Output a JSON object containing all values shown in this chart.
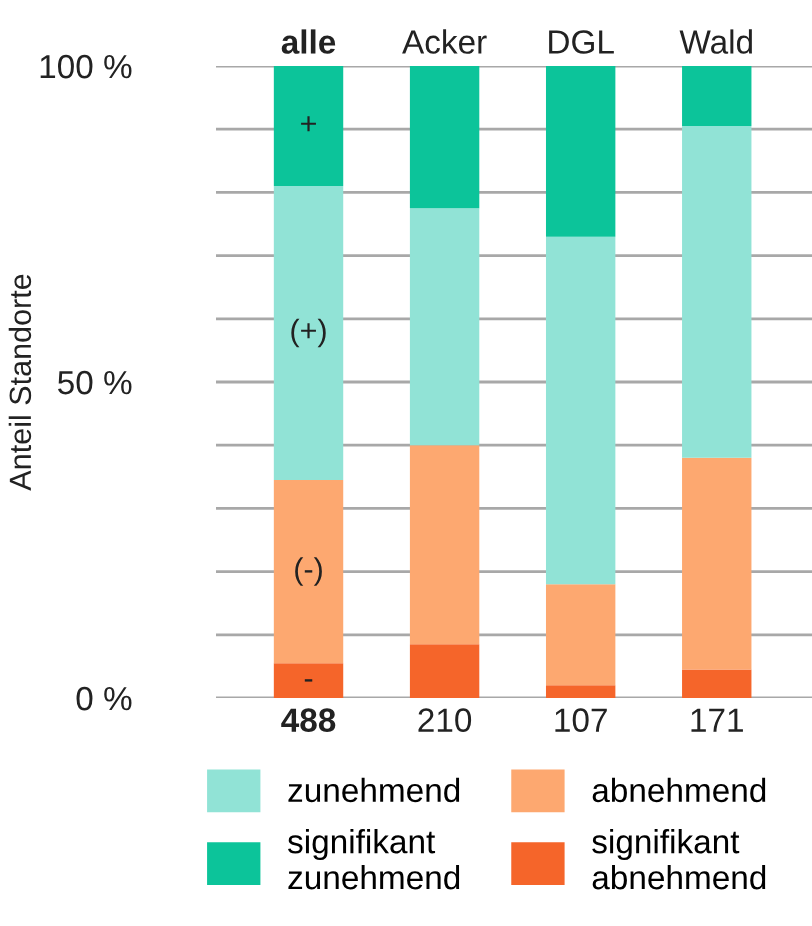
{
  "chart_data": {
    "type": "bar",
    "stacked": true,
    "categories": [
      "alle",
      "Acker",
      "DGL",
      "Wald"
    ],
    "ylabel": "Anteil Standorte",
    "series": [
      {
        "name": "signifikant abnehmend",
        "color": "#f5652a",
        "values": [
          5.5,
          8.5,
          2,
          4.5
        ]
      },
      {
        "name": "abnehmend",
        "color": "#fda870",
        "values": [
          29,
          31.5,
          16,
          33.5
        ]
      },
      {
        "name": "zunehmend",
        "color": "#91e3d6",
        "values": [
          46.5,
          37.5,
          55,
          52.5
        ]
      },
      {
        "name": "signifikant zunehmend",
        "color": "#0cc49a",
        "values": [
          19,
          22.5,
          27,
          9.5
        ]
      }
    ],
    "ylim": [
      0,
      100
    ],
    "yticks": [
      {
        "value": 0,
        "label": "0 %"
      },
      {
        "value": 10,
        "label": null
      },
      {
        "value": 20,
        "label": null
      },
      {
        "value": 30,
        "label": null
      },
      {
        "value": 40,
        "label": null
      },
      {
        "value": 50,
        "label": "50 %"
      },
      {
        "value": 60,
        "label": null
      },
      {
        "value": 70,
        "label": null
      },
      {
        "value": 80,
        "label": null
      },
      {
        "value": 90,
        "label": null
      },
      {
        "value": 100,
        "label": "100 %"
      }
    ],
    "grid": "y",
    "legend": "bottom",
    "annotations": [
      "+",
      "(+)",
      "(-)",
      "-",
      "488",
      "210",
      "107",
      "171"
    ]
  }
}
